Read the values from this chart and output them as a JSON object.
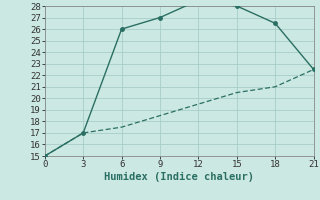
{
  "xlabel": "Humidex (Indice chaleur)",
  "upper_x": [
    0,
    3,
    6,
    9,
    12,
    15,
    18,
    21
  ],
  "upper_y": [
    15,
    17,
    26,
    27,
    28.5,
    28,
    26.5,
    22.5
  ],
  "lower_x": [
    0,
    3,
    6,
    9,
    12,
    15,
    18,
    21
  ],
  "lower_y": [
    15,
    17,
    17.5,
    18.5,
    19.5,
    20.5,
    21.0,
    22.5
  ],
  "line_color": "#2a6f63",
  "bg_color": "#cce8e3",
  "grid_color": "#a8cdc8",
  "xlim": [
    0,
    21
  ],
  "ylim": [
    15,
    28
  ],
  "xticks": [
    0,
    3,
    6,
    9,
    12,
    15,
    18,
    21
  ],
  "yticks": [
    15,
    16,
    17,
    18,
    19,
    20,
    21,
    22,
    23,
    24,
    25,
    26,
    27,
    28
  ],
  "tick_fontsize": 6.5,
  "xlabel_fontsize": 7.5
}
